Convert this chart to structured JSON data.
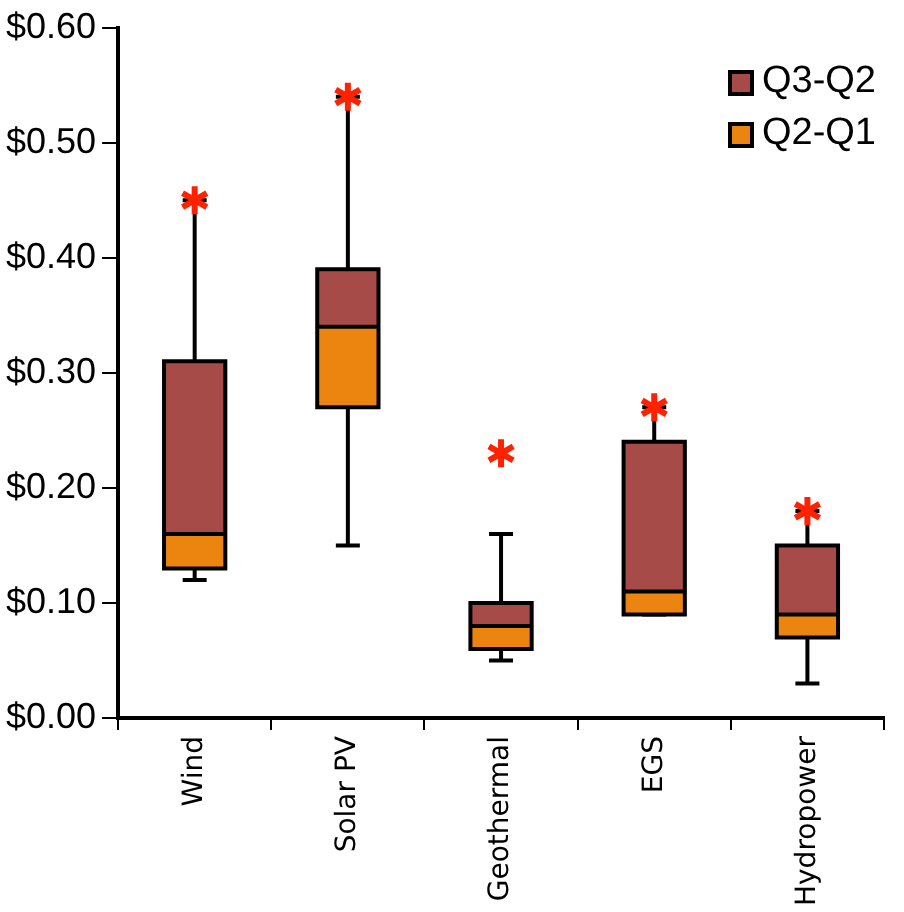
{
  "chart_data": {
    "type": "box",
    "categories": [
      "Wind",
      "Solar PV",
      "Geothermal",
      "EGS",
      "Hydropower"
    ],
    "boxes": [
      {
        "low": 0.12,
        "q1": 0.13,
        "median": 0.16,
        "q3": 0.31,
        "high": 0.45,
        "outliers": [
          0.45
        ]
      },
      {
        "low": 0.15,
        "q1": 0.27,
        "median": 0.34,
        "q3": 0.39,
        "high": 0.54,
        "outliers": [
          0.54
        ]
      },
      {
        "low": 0.05,
        "q1": 0.06,
        "median": 0.08,
        "q3": 0.1,
        "high": 0.16,
        "outliers": [
          0.23
        ]
      },
      {
        "low": 0.09,
        "q1": 0.09,
        "median": 0.11,
        "q3": 0.24,
        "high": 0.27,
        "outliers": [
          0.27
        ]
      },
      {
        "low": 0.03,
        "q1": 0.07,
        "median": 0.09,
        "q3": 0.15,
        "high": 0.18,
        "outliers": [
          0.18
        ]
      }
    ],
    "annotations": [
      "Q3-Q2",
      "Q2-Q1"
    ],
    "ylim": [
      0,
      0.6
    ],
    "yticks": [
      {
        "value": 0,
        "label": "$0.00"
      },
      {
        "value": 0.1,
        "label": "$0.10"
      },
      {
        "value": 0.2,
        "label": "$0.20"
      },
      {
        "value": 0.3,
        "label": "$0.30"
      },
      {
        "value": 0.4,
        "label": "$0.40"
      },
      {
        "value": 0.5,
        "label": "$0.50"
      },
      {
        "value": 0.6,
        "label": "$0.60"
      }
    ],
    "grid": false,
    "marker": "cross"
  }
}
